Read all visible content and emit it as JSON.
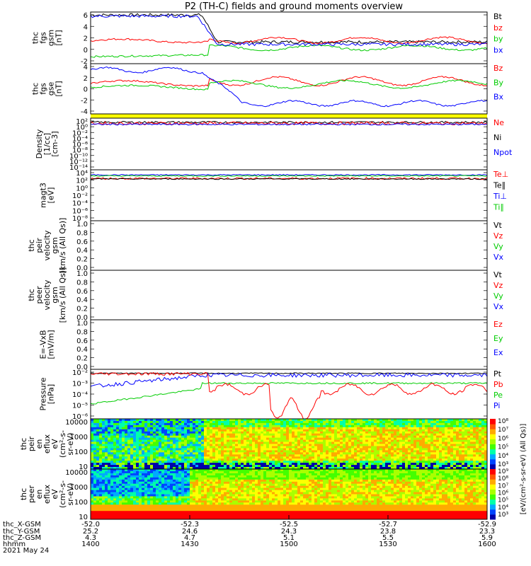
{
  "title": "P2 (TH-C) fields and ground moments overview",
  "colors": {
    "black": "#000000",
    "red": "#ff0000",
    "green": "#00cc00",
    "blue": "#0000ff",
    "yellow": "#ffff00"
  },
  "chart_data": [
    {
      "type": "line",
      "ylabel": [
        "thc",
        "fgs",
        "gsm",
        "[nT]"
      ],
      "yticks": [
        "6",
        "4",
        "2",
        "0",
        "-2"
      ],
      "ylim": [
        -2.5,
        6.3
      ],
      "legend": [
        {
          "name": "Bt",
          "color": "black"
        },
        {
          "name": "bz",
          "color": "red"
        },
        {
          "name": "by",
          "color": "green"
        },
        {
          "name": "bx",
          "color": "blue"
        }
      ]
    },
    {
      "type": "line",
      "ylabel": [
        "thc",
        "fgs",
        "gse",
        "[nT]"
      ],
      "yticks": [
        "4",
        "2",
        "0",
        "-2",
        "-4"
      ],
      "ylim": [
        -5,
        4.5
      ],
      "legend": [
        {
          "name": "Bz",
          "color": "red"
        },
        {
          "name": "By",
          "color": "green"
        },
        {
          "name": "Bx",
          "color": "blue"
        }
      ]
    },
    {
      "type": "line",
      "ylabel": [
        "Density",
        "[1/cc]",
        "[cm-3]"
      ],
      "yticks": [
        "10²",
        "10⁰",
        "10⁻²",
        "10⁻⁴",
        "10⁻⁶",
        "10⁻⁸",
        "10⁻¹⁰",
        "10⁻¹²",
        "10⁻¹⁴"
      ],
      "legend": [
        {
          "name": "Ne",
          "color": "red"
        },
        {
          "name": "Ni",
          "color": "black"
        },
        {
          "name": "Npot",
          "color": "blue"
        }
      ]
    },
    {
      "type": "line",
      "ylabel": [
        "magt3",
        "[eV]"
      ],
      "yticks": [
        "10⁴",
        "10²",
        "10⁰",
        "10⁻²",
        "10⁻⁴",
        "10⁻⁶",
        "10⁻⁸"
      ],
      "legend": [
        {
          "name": "Te⊥",
          "color": "red"
        },
        {
          "name": "Te∥",
          "color": "black"
        },
        {
          "name": "Ti⊥",
          "color": "blue"
        },
        {
          "name": "Ti∥",
          "color": "green"
        }
      ]
    },
    {
      "type": "line",
      "ylabel": [
        "thc",
        "peir",
        "velocity",
        "gsm",
        "[km/s (All Qs)]"
      ],
      "yticks": [
        "1.0",
        "0.8",
        "0.6",
        "0.4",
        "0.2",
        "0.0"
      ],
      "legend": [
        {
          "name": "Vt",
          "color": "black"
        },
        {
          "name": "Vz",
          "color": "red"
        },
        {
          "name": "Vy",
          "color": "green"
        },
        {
          "name": "Vx",
          "color": "blue"
        }
      ]
    },
    {
      "type": "line",
      "ylabel": [
        "thc",
        "peer",
        "velocity",
        "gsm",
        "[km/s (All Qs)]"
      ],
      "yticks": [
        "1.0",
        "0.8",
        "0.6",
        "0.4",
        "0.2",
        "0.0"
      ],
      "legend": [
        {
          "name": "Vt",
          "color": "black"
        },
        {
          "name": "Vz",
          "color": "red"
        },
        {
          "name": "Vy",
          "color": "green"
        },
        {
          "name": "Vx",
          "color": "blue"
        }
      ]
    },
    {
      "type": "line",
      "ylabel": [
        "E=-VxB",
        "[mV/m]"
      ],
      "yticks": [
        "1.0",
        "0.8",
        "0.6",
        "0.4",
        "0.2",
        "0.0"
      ],
      "legend": [
        {
          "name": "Ez",
          "color": "red"
        },
        {
          "name": "Ey",
          "color": "green"
        },
        {
          "name": "Ex",
          "color": "blue"
        }
      ]
    },
    {
      "type": "line",
      "ylabel": [
        "Pressure",
        "[nPa]"
      ],
      "yticks": [
        "10⁻²",
        "10⁻³",
        "10⁻⁴",
        "10⁻⁵",
        "10⁻⁶"
      ],
      "legend": [
        {
          "name": "Pt",
          "color": "black"
        },
        {
          "name": "Pb",
          "color": "red"
        },
        {
          "name": "Pe",
          "color": "green"
        },
        {
          "name": "Pi",
          "color": "blue"
        }
      ]
    },
    {
      "type": "heatmap",
      "ylabel": [
        "thc",
        "peir",
        "en",
        "eflux",
        "eV",
        "(cm²-s-",
        "sr-eV)"
      ],
      "yticks": [
        "10000",
        "1000",
        "100",
        "10"
      ],
      "colorbar": {
        "label": "eV/(cm²-s-sr-eV) (All Qs)",
        "ticks": [
          "10⁸",
          "10⁷",
          "10⁶",
          "10⁵",
          "10⁴",
          "10³"
        ]
      }
    },
    {
      "type": "heatmap",
      "ylabel": [
        "thc",
        "peer",
        "en",
        "eflux",
        "eV",
        "(cm²-s-",
        "sr-eV)"
      ],
      "yticks": [
        "10000",
        "1000",
        "100",
        "10"
      ],
      "colorbar": {
        "label": "eV/(cm²-s-sr-eV) (All Qs)",
        "ticks": [
          "10⁹",
          "10⁸",
          "10⁷",
          "10⁶",
          "10⁵",
          "10⁴",
          "10³"
        ]
      }
    }
  ],
  "axis_table": {
    "row_labels": [
      "thc_X-GSM",
      "thc_Y-GSM",
      "thc_Z-GSM",
      "hhmm",
      "2021 May 24"
    ],
    "columns": [
      [
        "-52.0",
        "25.2",
        "4.3",
        "1400"
      ],
      [
        "-52.3",
        "24.6",
        "4.7",
        "1430"
      ],
      [
        "-52.5",
        "24.3",
        "5.1",
        "1500"
      ],
      [
        "-52.7",
        "23.8",
        "5.5",
        "1530"
      ],
      [
        "-52.9",
        "23.3",
        "5.9",
        "1600"
      ]
    ]
  }
}
